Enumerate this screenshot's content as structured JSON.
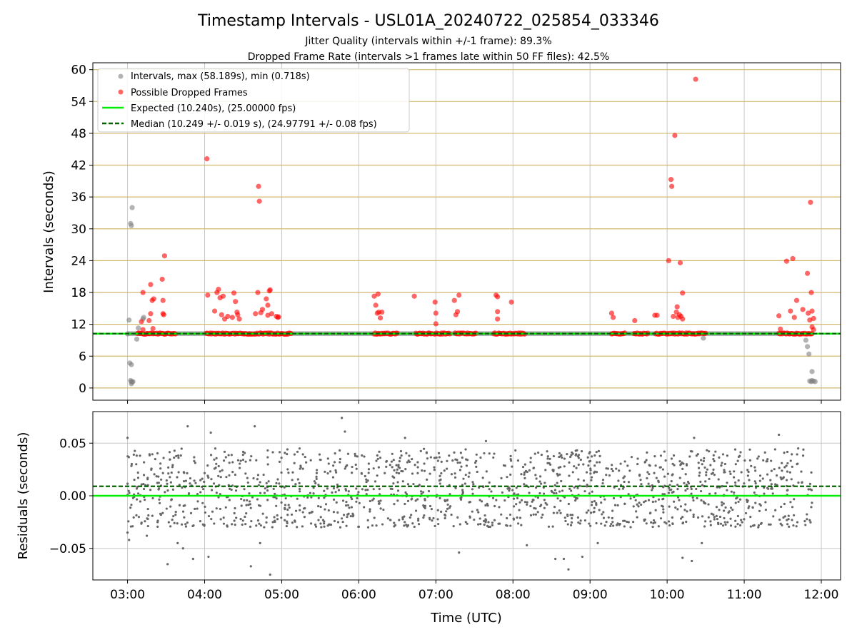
{
  "title": "Timestamp Intervals - USL01A_20240722_025854_033346",
  "subtitle_lines": [
    "Jitter Quality (intervals within +/-1 frame): 89.3%",
    "Dropped Frame Rate (intervals >1 frames late within 50 FF files): 42.5%"
  ],
  "colors": {
    "intervals": "#808080",
    "dropped": "#ff0000",
    "expected": "#00ee00",
    "median": "#006400",
    "residuals": "#666666",
    "hgrid_top": "#d2b96e",
    "grid": "#c8c8c8"
  },
  "chart_data": [
    {
      "id": "intervals",
      "type": "scatter",
      "ylabel": "Intervals (seconds)",
      "xlim_hours": [
        2.55,
        12.25
      ],
      "ylim": [
        -2.3,
        61.3
      ],
      "yticks": [
        0,
        6,
        12,
        18,
        24,
        30,
        36,
        42,
        48,
        54,
        60
      ],
      "grid": true,
      "legend_placement": "top-left",
      "legend": [
        {
          "label": "Intervals, max (58.189s), min (0.718s)",
          "style": "gray-marker"
        },
        {
          "label": "Possible Dropped Frames",
          "style": "red-marker"
        },
        {
          "label": "Expected (10.240s), (25.00000 fps)",
          "style": "green-line"
        },
        {
          "label": "Median (10.249 +/- 0.019 s), (24.97791 +/- 0.08 fps)",
          "style": "darkgreen-dashed-line"
        }
      ],
      "expected_value": 10.24,
      "median_value": 10.249,
      "baseline_series": {
        "name": "Intervals",
        "x_range_hours": [
          3.0,
          11.88
        ],
        "y_range": [
          10.1,
          10.4
        ]
      },
      "series": [
        {
          "name": "Intervals",
          "points": [
            [
              3.0,
              10.2
            ],
            [
              3.02,
              12.8
            ],
            [
              3.04,
              31.0
            ],
            [
              3.05,
              30.6
            ],
            [
              3.06,
              34.0
            ],
            [
              3.03,
              4.7
            ],
            [
              3.05,
              4.4
            ],
            [
              3.04,
              1.4
            ],
            [
              3.05,
              1.2
            ],
            [
              3.06,
              1.1
            ],
            [
              3.05,
              0.8
            ],
            [
              3.07,
              1.2
            ],
            [
              3.12,
              9.2
            ],
            [
              3.14,
              11.3
            ],
            [
              3.2,
              13.0
            ],
            [
              3.21,
              13.3
            ],
            [
              10.47,
              9.4
            ],
            [
              11.8,
              9.0
            ],
            [
              11.82,
              7.8
            ],
            [
              11.84,
              6.4
            ],
            [
              11.85,
              1.3
            ],
            [
              11.87,
              1.2
            ],
            [
              11.9,
              1.3
            ],
            [
              11.88,
              3.1
            ],
            [
              11.92,
              1.2
            ],
            [
              11.88,
              1.4
            ]
          ]
        },
        {
          "name": "Possible Dropped Frames",
          "clusters": [
            {
              "x_range_hours": [
                3.13,
                3.62
              ],
              "y": 10.25
            },
            {
              "x_range_hours": [
                4.02,
                4.62
              ],
              "y": 10.25
            },
            {
              "x_range_hours": [
                4.64,
                5.12
              ],
              "y": 10.25
            },
            {
              "x_range_hours": [
                6.2,
                6.5
              ],
              "y": 10.25
            },
            {
              "x_range_hours": [
                6.74,
                6.95
              ],
              "y": 10.25
            },
            {
              "x_range_hours": [
                6.98,
                7.18
              ],
              "y": 10.25
            },
            {
              "x_range_hours": [
                7.25,
                7.52
              ],
              "y": 10.25
            },
            {
              "x_range_hours": [
                7.75,
                8.15
              ],
              "y": 10.25
            },
            {
              "x_range_hours": [
                9.28,
                9.45
              ],
              "y": 10.25
            },
            {
              "x_range_hours": [
                9.57,
                9.75
              ],
              "y": 10.25
            },
            {
              "x_range_hours": [
                9.85,
                10.5
              ],
              "y": 10.25
            },
            {
              "x_range_hours": [
                11.45,
                11.88
              ],
              "y": 10.25
            }
          ],
          "points": [
            [
              3.2,
              18.0
            ],
            [
              3.18,
              12.5
            ],
            [
              3.2,
              11.0
            ],
            [
              3.28,
              12.7
            ],
            [
              3.3,
              14.0
            ],
            [
              3.3,
              19.5
            ],
            [
              3.32,
              16.5
            ],
            [
              3.34,
              16.8
            ],
            [
              3.33,
              11.2
            ],
            [
              3.45,
              20.5
            ],
            [
              3.46,
              16.5
            ],
            [
              3.46,
              14.0
            ],
            [
              3.47,
              13.8
            ],
            [
              3.48,
              24.9
            ],
            [
              4.03,
              43.2
            ],
            [
              4.04,
              17.5
            ],
            [
              4.13,
              14.5
            ],
            [
              4.16,
              18.0
            ],
            [
              4.18,
              18.6
            ],
            [
              4.2,
              17.0
            ],
            [
              4.22,
              13.8
            ],
            [
              4.24,
              17.3
            ],
            [
              4.26,
              13.0
            ],
            [
              4.3,
              13.5
            ],
            [
              4.36,
              13.3
            ],
            [
              4.38,
              17.9
            ],
            [
              4.4,
              16.3
            ],
            [
              4.42,
              14.3
            ],
            [
              4.43,
              13.8
            ],
            [
              4.45,
              13.0
            ],
            [
              4.66,
              14.0
            ],
            [
              4.69,
              18.0
            ],
            [
              4.7,
              38.0
            ],
            [
              4.71,
              35.2
            ],
            [
              4.73,
              14.2
            ],
            [
              4.75,
              14.8
            ],
            [
              4.8,
              16.8
            ],
            [
              4.82,
              15.6
            ],
            [
              4.84,
              18.3
            ],
            [
              4.85,
              18.5
            ],
            [
              4.82,
              13.7
            ],
            [
              4.87,
              14.0
            ],
            [
              4.93,
              13.5
            ],
            [
              4.95,
              13.3
            ],
            [
              4.96,
              13.4
            ],
            [
              6.2,
              17.3
            ],
            [
              6.22,
              15.6
            ],
            [
              6.25,
              17.7
            ],
            [
              6.24,
              14.1
            ],
            [
              6.26,
              14.3
            ],
            [
              6.28,
              13.2
            ],
            [
              6.3,
              14.3
            ],
            [
              6.72,
              17.3
            ],
            [
              6.99,
              16.2
            ],
            [
              7.0,
              14.1
            ],
            [
              7.0,
              12.1
            ],
            [
              7.24,
              16.5
            ],
            [
              7.26,
              13.8
            ],
            [
              7.28,
              14.4
            ],
            [
              7.3,
              17.5
            ],
            [
              7.78,
              17.5
            ],
            [
              7.8,
              17.2
            ],
            [
              7.8,
              14.4
            ],
            [
              7.8,
              13.0
            ],
            [
              7.98,
              16.2
            ],
            [
              9.28,
              14.1
            ],
            [
              9.3,
              13.3
            ],
            [
              9.58,
              12.7
            ],
            [
              9.84,
              13.7
            ],
            [
              9.87,
              13.7
            ],
            [
              10.02,
              24.0
            ],
            [
              10.05,
              39.3
            ],
            [
              10.06,
              38.0
            ],
            [
              10.08,
              13.5
            ],
            [
              10.1,
              47.6
            ],
            [
              10.12,
              14.3
            ],
            [
              10.13,
              15.3
            ],
            [
              10.14,
              13.3
            ],
            [
              10.16,
              13.8
            ],
            [
              10.17,
              23.6
            ],
            [
              10.18,
              13.5
            ],
            [
              10.2,
              17.9
            ],
            [
              10.2,
              13.0
            ],
            [
              10.37,
              58.2
            ],
            [
              11.45,
              13.6
            ],
            [
              11.47,
              11.1
            ],
            [
              11.55,
              23.9
            ],
            [
              11.6,
              14.5
            ],
            [
              11.63,
              24.4
            ],
            [
              11.65,
              13.3
            ],
            [
              11.68,
              16.5
            ],
            [
              11.76,
              14.8
            ],
            [
              11.82,
              21.6
            ],
            [
              11.83,
              14.1
            ],
            [
              11.85,
              12.8
            ],
            [
              11.86,
              35.0
            ],
            [
              11.87,
              18.0
            ],
            [
              11.88,
              14.5
            ],
            [
              11.9,
              13.1
            ],
            [
              11.88,
              11.5
            ],
            [
              11.9,
              11.0
            ]
          ]
        },
        {
          "name": "Expected",
          "y": 10.24
        },
        {
          "name": "Median",
          "y": 10.249
        }
      ]
    },
    {
      "id": "residuals",
      "type": "scatter",
      "xlabel": "Time (UTC)",
      "ylabel": "Residuals (seconds)",
      "xlim_hours": [
        2.55,
        12.25
      ],
      "ylim": [
        -0.08,
        0.08
      ],
      "yticks": [
        -0.05,
        0.0,
        0.05
      ],
      "ytick_labels": [
        "−0.05",
        "0.00",
        "0.05"
      ],
      "xticks_hours": [
        3,
        4,
        5,
        6,
        7,
        8,
        9,
        10,
        11,
        12
      ],
      "xtick_labels": [
        "03:00",
        "04:00",
        "05:00",
        "06:00",
        "07:00",
        "08:00",
        "09:00",
        "10:00",
        "11:00",
        "12:00"
      ],
      "grid": true,
      "zero_line": 0.0,
      "median_offset": 0.009,
      "series": [
        {
          "name": "Residuals",
          "x_range_hours": [
            3.0,
            11.88
          ],
          "typical_range": [
            -0.03,
            0.045
          ],
          "extremes": [
            [
              3.0,
              0.055
            ],
            [
              3.0,
              -0.035
            ],
            [
              3.02,
              -0.042
            ],
            [
              3.25,
              -0.038
            ],
            [
              3.52,
              -0.065
            ],
            [
              3.65,
              -0.045
            ],
            [
              3.72,
              -0.05
            ],
            [
              3.78,
              0.066
            ],
            [
              3.85,
              -0.06
            ],
            [
              4.05,
              -0.058
            ],
            [
              4.08,
              0.06
            ],
            [
              4.6,
              -0.067
            ],
            [
              4.65,
              0.066
            ],
            [
              4.72,
              -0.045
            ],
            [
              4.85,
              -0.075
            ],
            [
              5.78,
              0.074
            ],
            [
              5.82,
              0.061
            ],
            [
              6.6,
              0.055
            ],
            [
              7.3,
              -0.054
            ],
            [
              7.65,
              0.052
            ],
            [
              8.18,
              -0.047
            ],
            [
              8.55,
              -0.06
            ],
            [
              8.66,
              -0.06
            ],
            [
              8.72,
              -0.07
            ],
            [
              8.9,
              -0.058
            ],
            [
              9.1,
              -0.045
            ],
            [
              10.2,
              -0.059
            ],
            [
              10.32,
              -0.062
            ],
            [
              10.35,
              0.055
            ],
            [
              10.45,
              -0.045
            ],
            [
              11.45,
              0.058
            ],
            [
              11.7,
              0.045
            ]
          ]
        }
      ]
    }
  ]
}
